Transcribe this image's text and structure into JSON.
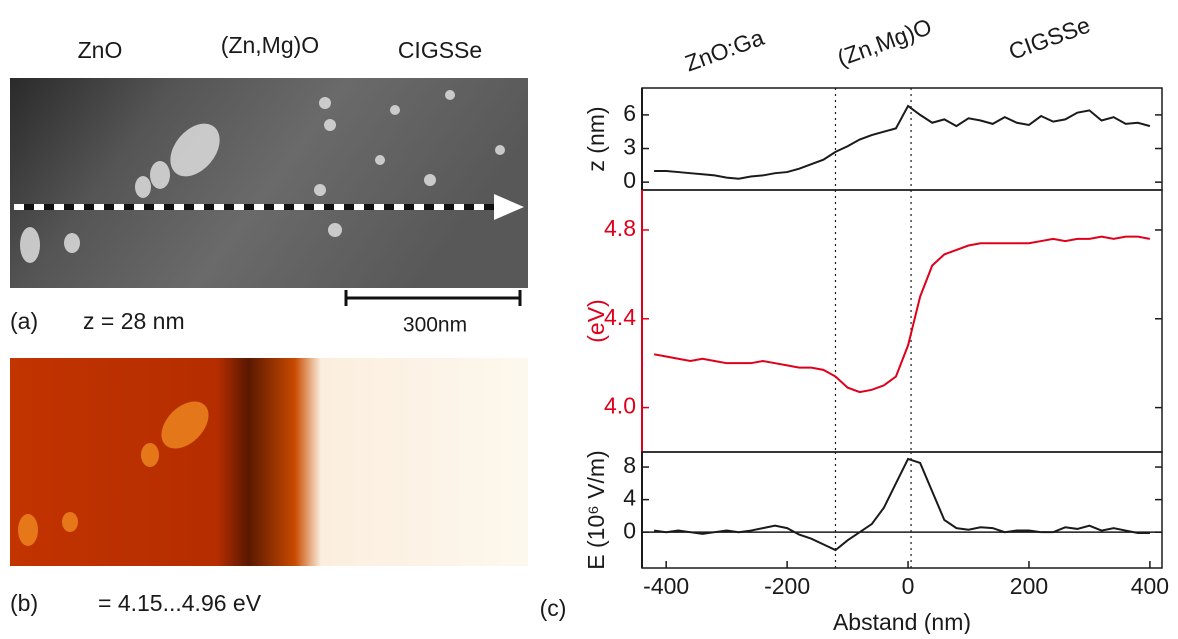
{
  "panels": {
    "a": {
      "label": "(a)",
      "caption": "z = 28 nm",
      "regions": [
        "ZnO",
        "(Zn,Mg)O",
        "CIGSSe"
      ],
      "scale_bar": "300nm"
    },
    "b": {
      "label": "(b)",
      "caption": "= 4.15...4.96 eV"
    },
    "c": {
      "label": "(c)",
      "regions": [
        "ZnO:Ga",
        "(Zn,Mg)O",
        "CIGSSe"
      ]
    }
  },
  "chart_data": [
    {
      "type": "line",
      "y_label": "z (nm)",
      "color": "#1a1a1a",
      "x": [
        -420,
        -400,
        -380,
        -360,
        -340,
        -320,
        -300,
        -280,
        -260,
        -240,
        -220,
        -200,
        -180,
        -160,
        -140,
        -120,
        -100,
        -80,
        -60,
        -40,
        -20,
        0,
        20,
        40,
        60,
        80,
        100,
        120,
        140,
        160,
        180,
        200,
        220,
        240,
        260,
        280,
        300,
        320,
        340,
        360,
        380,
        400
      ],
      "values": [
        1.0,
        1.0,
        0.9,
        0.8,
        0.7,
        0.6,
        0.4,
        0.3,
        0.5,
        0.6,
        0.8,
        0.9,
        1.2,
        1.6,
        2.0,
        2.7,
        3.2,
        3.8,
        4.2,
        4.5,
        4.8,
        6.8,
        6.0,
        5.3,
        5.6,
        5.0,
        5.7,
        5.5,
        5.2,
        5.8,
        5.3,
        5.1,
        5.9,
        5.4,
        5.6,
        6.2,
        6.4,
        5.5,
        5.8,
        5.2,
        5.3,
        5.0
      ],
      "xlim": [
        -440,
        420
      ],
      "ylim": [
        -0.7,
        8.4
      ],
      "yticks": [
        0,
        3,
        6
      ],
      "vlines": [
        -120,
        5
      ]
    },
    {
      "type": "line",
      "y_label": "(eV)",
      "color": "#e0001b",
      "x": [
        -420,
        -400,
        -380,
        -360,
        -340,
        -320,
        -300,
        -280,
        -260,
        -240,
        -220,
        -200,
        -180,
        -160,
        -140,
        -120,
        -100,
        -80,
        -60,
        -40,
        -20,
        0,
        20,
        40,
        60,
        80,
        100,
        120,
        140,
        160,
        180,
        200,
        220,
        240,
        260,
        280,
        300,
        320,
        340,
        360,
        380,
        400
      ],
      "values": [
        4.24,
        4.23,
        4.22,
        4.21,
        4.22,
        4.21,
        4.2,
        4.2,
        4.2,
        4.21,
        4.2,
        4.19,
        4.18,
        4.18,
        4.17,
        4.14,
        4.09,
        4.07,
        4.08,
        4.1,
        4.14,
        4.28,
        4.5,
        4.64,
        4.69,
        4.71,
        4.73,
        4.74,
        4.74,
        4.74,
        4.74,
        4.74,
        4.75,
        4.76,
        4.75,
        4.76,
        4.76,
        4.77,
        4.76,
        4.77,
        4.77,
        4.76
      ],
      "xlim": [
        -440,
        420
      ],
      "ylim": [
        3.8,
        4.98
      ],
      "yticks": [
        {
          "value": 4,
          "label": "4.0"
        },
        4.4,
        4.8
      ],
      "vlines": [
        -120,
        5
      ]
    },
    {
      "type": "line",
      "y_label": "E (10⁶ V/m)",
      "x_label": "Abstand (nm)",
      "color": "#1a1a1a",
      "x": [
        -420,
        -400,
        -380,
        -360,
        -340,
        -320,
        -300,
        -280,
        -260,
        -240,
        -220,
        -200,
        -180,
        -160,
        -140,
        -120,
        -100,
        -80,
        -60,
        -40,
        -20,
        0,
        20,
        40,
        60,
        80,
        100,
        120,
        140,
        160,
        180,
        200,
        220,
        240,
        260,
        280,
        300,
        320,
        340,
        360,
        380,
        400
      ],
      "values": [
        0.2,
        0,
        0.2,
        0,
        -0.2,
        0,
        0.2,
        0,
        0.2,
        0.5,
        0.8,
        0.5,
        -0.3,
        -0.8,
        -1.5,
        -2.2,
        -1.0,
        0,
        1.0,
        3,
        6,
        9.0,
        8.5,
        5.0,
        1.5,
        0.5,
        0.3,
        0.6,
        0.5,
        0.0,
        0.2,
        0.2,
        0,
        0,
        0.6,
        0.4,
        0.8,
        0.2,
        0.5,
        0.2,
        -0.1,
        -0.1
      ],
      "xlim": [
        -440,
        420
      ],
      "ylim": [
        -4.4,
        9.85
      ],
      "yticks": [
        0,
        4,
        8
      ],
      "xticks": [
        -400,
        -200,
        0,
        200,
        400
      ],
      "hline": 0,
      "vlines": [
        -120,
        5
      ]
    }
  ]
}
